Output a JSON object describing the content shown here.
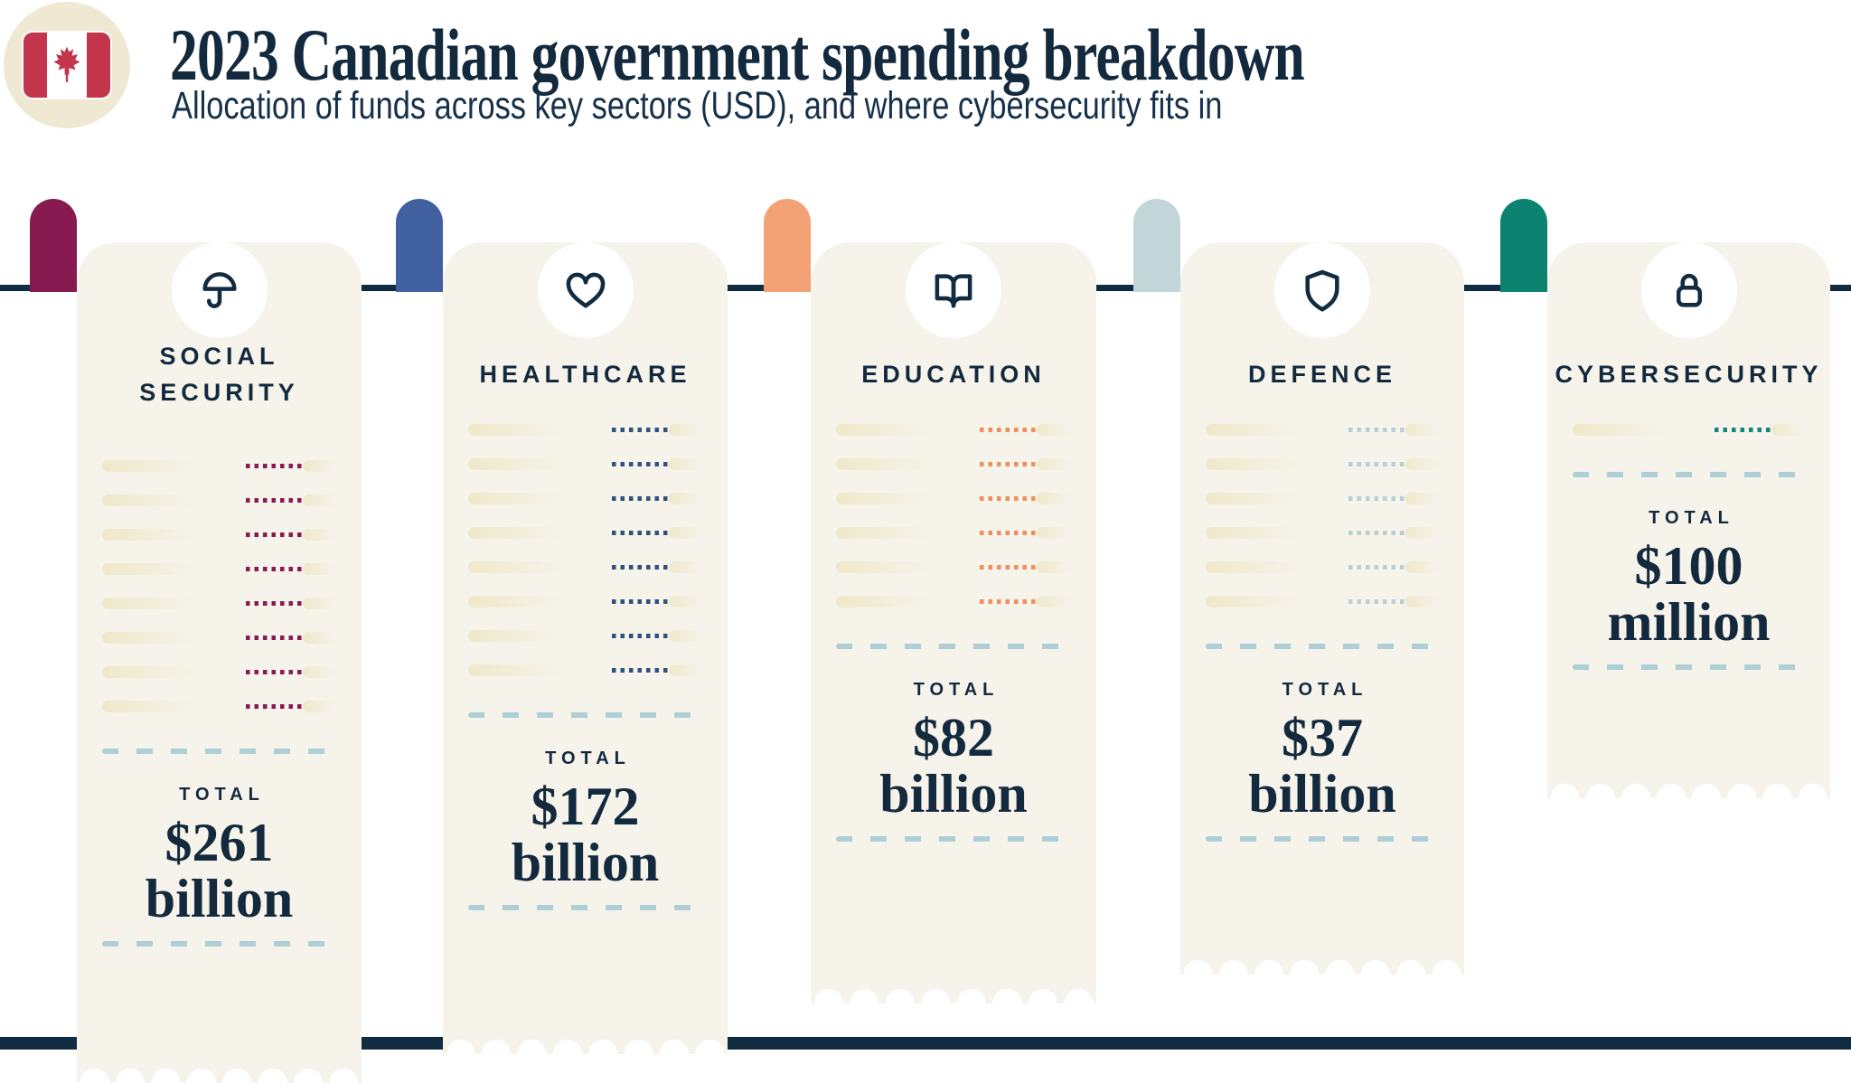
{
  "header": {
    "title": "2023 Canadian government spending breakdown",
    "subtitle": "Allocation of funds across key sectors (USD), and where cybersecurity fits in",
    "flag_icon": "canada-flag-icon"
  },
  "labels": {
    "total": "TOTAL"
  },
  "colors": {
    "navy": "#112B40",
    "receipt_paper": "#F6F3EB",
    "line_item_bar": "#EFE8C9",
    "dashed_separator": "#AECFD5",
    "flag_badge_background": "#EFE8D2",
    "flag_red": "#C2354B"
  },
  "receipts": [
    {
      "sector": "SOCIAL\nSECURITY",
      "icon": "umbrella-icon",
      "tab_color": "#871B51",
      "dot_color": "#8A1A52",
      "line_items": 8,
      "total_label": "TOTAL",
      "amount": "$261",
      "unit": "billion"
    },
    {
      "sector": "HEALTHCARE",
      "icon": "heart-icon",
      "tab_color": "#41609F",
      "dot_color": "#31517F",
      "line_items": 8,
      "total_label": "TOTAL",
      "amount": "$172",
      "unit": "billion"
    },
    {
      "sector": "EDUCATION",
      "icon": "book-icon",
      "tab_color": "#F3A276",
      "dot_color": "#EF8F5C",
      "line_items": 6,
      "total_label": "TOTAL",
      "amount": "$82",
      "unit": "billion"
    },
    {
      "sector": "DEFENCE",
      "icon": "shield-icon",
      "tab_color": "#C2D6D9",
      "dot_color": "#B9CFD4",
      "line_items": 6,
      "total_label": "TOTAL",
      "amount": "$37",
      "unit": "billion"
    },
    {
      "sector": "CYBERSECURITY",
      "icon": "lock-icon",
      "tab_color": "#0C8270",
      "dot_color": "#118578",
      "line_items": 1,
      "total_label": "TOTAL",
      "amount": "$100",
      "unit": "million"
    }
  ],
  "chart_data": {
    "type": "bar",
    "title": "2023 Canadian government spending breakdown",
    "subtitle": "Allocation of funds across key sectors (USD), and where cybersecurity fits in",
    "categories": [
      "Social Security",
      "Healthcare",
      "Education",
      "Defence",
      "Cybersecurity"
    ],
    "values_usd_billions": [
      261,
      172,
      82,
      37,
      0.1
    ],
    "value_labels": [
      "$261 billion",
      "$172 billion",
      "$82 billion",
      "$37 billion",
      "$100 million"
    ],
    "unit": "USD",
    "legend_position": "none",
    "style": "pictograph-receipts"
  }
}
